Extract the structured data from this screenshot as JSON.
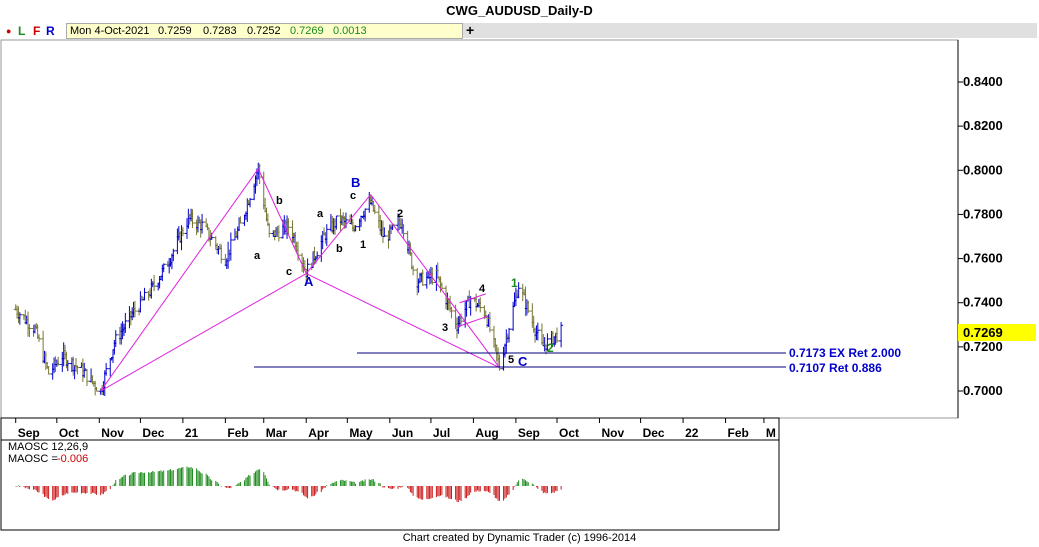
{
  "title": "CWG_AUDUSD_Daily-D",
  "toolbar": {
    "l": "L",
    "f": "F",
    "r": "R",
    "plus": "+"
  },
  "info": {
    "date": "Mon 4-Oct-2021",
    "open": "0.7259",
    "high": "0.7283",
    "low": "0.7252",
    "close": "0.7269",
    "change": "0.0013"
  },
  "colors": {
    "up_bar": "#0000cc",
    "down_bar": "#777733",
    "wave_line": "#e020e0",
    "target_line": "#000080",
    "osc_up": "#1a8a1a",
    "osc_down": "#cc1a1a",
    "last_price_bg": "#ffff00"
  },
  "footer": "Chart created by Dynamic Trader  (c) 1996-2014",
  "price_axis": {
    "ticks": [
      "0.8400",
      "0.8200",
      "0.8000",
      "0.7800",
      "0.7600",
      "0.7400",
      "0.7200",
      "0.7000"
    ],
    "last_price": "0.7269"
  },
  "time_axis": {
    "labels": [
      "Sep",
      "Oct",
      "Nov",
      "Dec",
      "21",
      "Feb",
      "Mar",
      "Apr",
      "May",
      "Jun",
      "Jul",
      "Aug",
      "Sep",
      "Oct",
      "Nov",
      "Dec",
      "22",
      "Feb",
      "M"
    ]
  },
  "annotations": {
    "target1": "0.7173 EX Ret 2.000",
    "target2": "0.7107 Ret 0.886",
    "wave_A": "A",
    "wave_B": "B",
    "wave_C": "C",
    "sub_a1": "a",
    "sub_b1": "b",
    "sub_c1": "c",
    "sub_a2": "a",
    "sub_b2": "b",
    "sub_c2": "c",
    "n1": "1",
    "n2": "2",
    "n3": "3",
    "n4": "4",
    "n5": "5",
    "g1": "1",
    "g2": "2"
  },
  "oscillator": {
    "name": "MAOSC 12,26,9",
    "value_label": "MAOSC =",
    "value": "-0.006"
  },
  "chart_data": {
    "type": "ohlc",
    "title": "CWG_AUDUSD_Daily-D",
    "ylim": [
      0.6952,
      0.8543
    ],
    "x_range": [
      "2020-09",
      "2022-03"
    ],
    "series_close": [
      [
        "2020-09-01",
        0.737
      ],
      [
        "2020-09-15",
        0.728
      ],
      [
        "2020-09-25",
        0.708
      ],
      [
        "2020-10-05",
        0.716
      ],
      [
        "2020-10-20",
        0.709
      ],
      [
        "2020-11-02",
        0.7
      ],
      [
        "2020-11-12",
        0.722
      ],
      [
        "2020-11-25",
        0.735
      ],
      [
        "2020-12-08",
        0.745
      ],
      [
        "2020-12-20",
        0.757
      ],
      [
        "2021-01-05",
        0.778
      ],
      [
        "2021-01-15",
        0.775
      ],
      [
        "2021-02-01",
        0.76
      ],
      [
        "2021-02-12",
        0.775
      ],
      [
        "2021-02-25",
        0.801
      ],
      [
        "2021-03-05",
        0.77
      ],
      [
        "2021-03-20",
        0.775
      ],
      [
        "2021-04-01",
        0.754
      ],
      [
        "2021-04-15",
        0.771
      ],
      [
        "2021-04-25",
        0.778
      ],
      [
        "2021-05-05",
        0.774
      ],
      [
        "2021-05-12",
        0.781
      ],
      [
        "2021-05-18",
        0.785
      ],
      [
        "2021-05-28",
        0.769
      ],
      [
        "2021-06-10",
        0.777
      ],
      [
        "2021-06-20",
        0.75
      ],
      [
        "2021-07-05",
        0.752
      ],
      [
        "2021-07-20",
        0.73
      ],
      [
        "2021-07-30",
        0.742
      ],
      [
        "2021-08-10",
        0.735
      ],
      [
        "2021-08-20",
        0.711
      ],
      [
        "2021-09-03",
        0.748
      ],
      [
        "2021-09-20",
        0.72
      ],
      [
        "2021-10-04",
        0.7269
      ]
    ],
    "wave_points": [
      {
        "date": "2020-11-02",
        "price": 0.7
      },
      {
        "date": "2021-02-25",
        "price": 0.8007
      },
      {
        "date": "2021-04-01",
        "price": 0.7532,
        "label": "A"
      },
      {
        "date": "2021-05-18",
        "price": 0.789,
        "label": "B"
      },
      {
        "date": "2021-08-20",
        "price": 0.7106,
        "label": "C"
      }
    ],
    "targets": [
      {
        "price": 0.7173,
        "label": "0.7173 EX Ret 2.000"
      },
      {
        "price": 0.7107,
        "label": "0.7107 Ret 0.886"
      }
    ],
    "oscillator": {
      "name": "MAOSC 12,26,9",
      "last": -0.006
    }
  }
}
